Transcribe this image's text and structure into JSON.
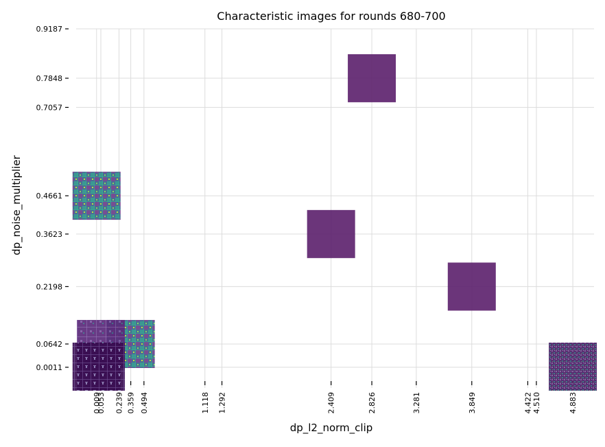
{
  "chart_data": {
    "type": "scatter",
    "title": "Characteristic images for rounds 680-700",
    "xlabel": "dp_l2_norm_clip",
    "ylabel": "dp_noise_multiplier",
    "x_ticks": [
      "0.009",
      "0.053",
      "0.239",
      "0.359",
      "0.494",
      "1.118",
      "1.292",
      "2.409",
      "2.826",
      "3.281",
      "3.849",
      "4.422",
      "4.510",
      "4.883"
    ],
    "y_ticks": [
      "0.0011",
      "0.0642",
      "0.2198",
      "0.3623",
      "0.4661",
      "0.7057",
      "0.7848",
      "0.9187"
    ],
    "xlim": [
      -0.2,
      5.1
    ],
    "ylim": [
      -0.055,
      0.9187
    ],
    "grid": true,
    "points": [
      {
        "x": 2.826,
        "y": 0.7848,
        "image": "solid-purple"
      },
      {
        "x": 0.009,
        "y": 0.4661,
        "image": "teal-mnist-grid"
      },
      {
        "x": 2.409,
        "y": 0.3623,
        "image": "solid-purple"
      },
      {
        "x": 3.849,
        "y": 0.2198,
        "image": "solid-purple"
      },
      {
        "x": 0.359,
        "y": 0.0642,
        "image": "teal-mnist-grid"
      },
      {
        "x": 0.053,
        "y": 0.0642,
        "image": "purple-mnist-grid"
      },
      {
        "x": 0.009,
        "y": 0.0011,
        "image": "dark-purple-mnist-grid"
      },
      {
        "x": 0.053,
        "y": 0.0011,
        "image": "dark-purple-mnist-grid"
      },
      {
        "x": 4.883,
        "y": 0.0011,
        "image": "purple-noise-grid"
      }
    ],
    "colors": {
      "solid_purple": "#5b1f6b",
      "dark_purple": "#44105a",
      "teal": "#2a8f8a",
      "yellow_green": "#b8de29"
    }
  }
}
